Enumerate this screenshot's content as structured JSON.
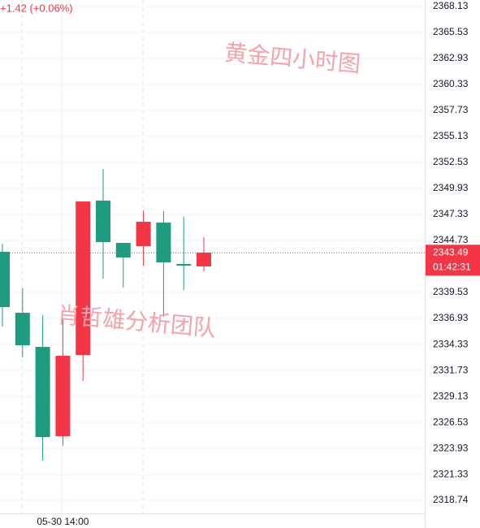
{
  "chart_data": {
    "type": "candlestick",
    "change_label": "+1.42 (+0.06%)",
    "watermarks": [
      "黄金四小时图",
      "肖哲雄分析团队"
    ],
    "categories": [
      null,
      null,
      null,
      "05-30 14:00",
      null,
      null,
      null,
      null,
      null,
      null,
      null
    ],
    "open": [
      2338.07,
      2334.25,
      2325.07,
      2333.2,
      2348.63,
      2344.57,
      2343.03,
      2346.6,
      2342.54,
      2342.22,
      2343.52
    ],
    "high": [
      2344.41,
      2339.94,
      2337.26,
      2336.94,
      2348.63,
      2351.88,
      2344.49,
      2347.74,
      2347.66,
      2347.09,
      2345.06
    ],
    "low": [
      2336.12,
      2333.04,
      2322.72,
      2324.18,
      2330.68,
      2340.92,
      2340.02,
      2342.22,
      2337.1,
      2339.78,
      2341.65
    ],
    "close": [
      2343.6,
      2337.5,
      2334.09,
      2325.16,
      2333.28,
      2348.72,
      2344.49,
      2344.17,
      2346.52,
      2342.38,
      2342.14
    ],
    "up_color": "#1f9b7f",
    "down_color": "#f23645",
    "last_price": 2343.49,
    "countdown": "01:42:31",
    "ylim": [
      2317.44,
      2368.78
    ],
    "yticks": [
      2318.74,
      2321.33,
      2323.93,
      2326.53,
      2329.13,
      2331.73,
      2334.33,
      2336.93,
      2339.53,
      2344.73,
      2347.33,
      2349.93,
      2352.53,
      2355.13,
      2357.73,
      2360.33,
      2362.93,
      2365.53,
      2368.13
    ],
    "grid": true
  }
}
